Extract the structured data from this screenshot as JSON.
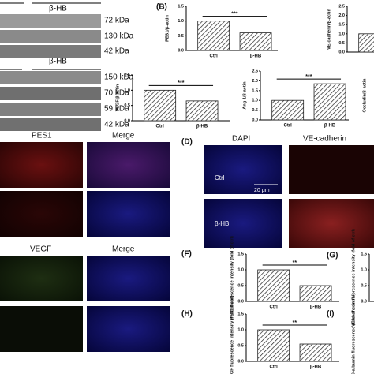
{
  "blots": [
    {
      "group": "β-HB",
      "markers": [
        "72 kDa",
        "130 kDa",
        "42 kDa"
      ]
    },
    {
      "group": "β-HB",
      "markers": [
        "150 kDa",
        "70 kDa",
        "59 kDa",
        "42 kDa"
      ]
    }
  ],
  "panel_labels": [
    "(B)",
    "(D)",
    "(F)",
    "(G)",
    "(H)",
    "(I)"
  ],
  "micrographs": {
    "group1": [
      "PES1",
      "Merge"
    ],
    "group2": [
      "VEGF",
      "Merge"
    ],
    "group3": {
      "columns": [
        "DAPI",
        "VE-cadherin"
      ],
      "rows": [
        "Ctrl",
        "β-HB"
      ],
      "scale_bar": "20 μm"
    }
  },
  "chart_data": [
    {
      "type": "bar",
      "ylabel": "PES1/β-actin",
      "categories": [
        "Ctrl",
        "β-HB"
      ],
      "values": [
        1.0,
        0.6
      ],
      "significance": "***",
      "ylim": [
        0,
        1.5
      ],
      "yticks": [
        {
          "value": 0,
          "label": "0.0"
        },
        {
          "value": 0.5,
          "label": "0.5"
        },
        {
          "value": 1,
          "label": "1.0"
        },
        {
          "value": 1.5,
          "label": "1.5"
        }
      ]
    },
    {
      "type": "bar",
      "ylabel": "VE-cadherin/β-actin",
      "categories": [
        null
      ],
      "values": [
        1.0
      ],
      "ylim": [
        0,
        2.5
      ],
      "yticks": [
        {
          "value": 0,
          "label": "0.0"
        },
        {
          "value": 0.5,
          "label": "0.5"
        },
        {
          "value": 1,
          "label": "1.0"
        },
        {
          "value": 1.5,
          "label": "1.5"
        },
        {
          "value": 2,
          "label": "2.0"
        },
        {
          "value": 2.5,
          "label": "2.5"
        }
      ]
    },
    {
      "type": "bar",
      "ylabel": "VEGF/β-actin",
      "categories": [
        "Ctrl",
        "β-HB"
      ],
      "values": [
        1.0,
        0.65
      ],
      "significance": "***",
      "ylim": [
        0,
        1.5
      ],
      "yticks": [
        {
          "value": 0,
          "label": "0.0"
        },
        {
          "value": 0.5,
          "label": "0.5"
        },
        {
          "value": 1,
          "label": "1.0"
        },
        {
          "value": 1.5,
          "label": "1.5"
        }
      ]
    },
    {
      "type": "bar",
      "ylabel": "Ang-1/β-actin",
      "categories": [
        "Ctrl",
        "β-HB"
      ],
      "values": [
        1.0,
        1.85
      ],
      "significance": "***",
      "ylim": [
        0,
        2.5
      ],
      "yticks": [
        {
          "value": 0,
          "label": "0.0"
        },
        {
          "value": 0.5,
          "label": "0.5"
        },
        {
          "value": 1,
          "label": "1.0"
        },
        {
          "value": 1.5,
          "label": "1.5"
        },
        {
          "value": 2,
          "label": "2.0"
        },
        {
          "value": 2.5,
          "label": "2.5"
        }
      ]
    },
    {
      "type": "bar",
      "ylabel": "Occludin/β-actin"
    },
    {
      "type": "bar",
      "ylabel": "PES1 fluorescence intensity (fold of ctrl)",
      "categories": [
        "Ctrl",
        "β-HB"
      ],
      "values": [
        1.0,
        0.5
      ],
      "significance": "**",
      "ylim": [
        0,
        1.5
      ],
      "yticks": [
        {
          "value": 0,
          "label": "0.0"
        },
        {
          "value": 0.5,
          "label": "0.5"
        },
        {
          "value": 1,
          "label": "1.0"
        },
        {
          "value": 1.5,
          "label": "1.5"
        }
      ]
    },
    {
      "type": "bar",
      "ylabel": "VE-cadherin fluorescence intensity (fold of ctrl)",
      "ylim": [
        0,
        1.5
      ],
      "yticks": [
        {
          "value": 0,
          "label": "0.0"
        },
        {
          "value": 0.5,
          "label": "0.5"
        },
        {
          "value": 1,
          "label": "1.0"
        },
        {
          "value": 1.5,
          "label": "1.5"
        }
      ]
    },
    {
      "type": "bar",
      "ylabel": "VEGF fluorescence Intensity (fold of ctrl)",
      "categories": [
        "Ctrl",
        "β-HB"
      ],
      "values": [
        1.0,
        0.55
      ],
      "significance": "**",
      "ylim": [
        0,
        1.5
      ],
      "yticks": [
        {
          "value": 0,
          "label": "0.0"
        },
        {
          "value": 0.5,
          "label": "0.5"
        },
        {
          "value": 1,
          "label": "1.0"
        },
        {
          "value": 1.5,
          "label": "1.5"
        }
      ]
    },
    {
      "type": "bar",
      "ylabel": "FITC-albumin fluorescence (fold of control)"
    }
  ]
}
